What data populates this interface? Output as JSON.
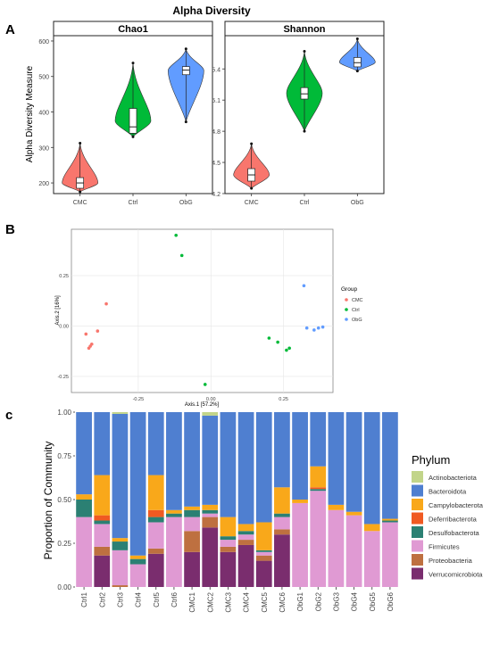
{
  "figure": {
    "title": "Alpha Diversity",
    "panel_labels": [
      "A",
      "B",
      "c"
    ]
  },
  "colors": {
    "CMC": "#F8766D",
    "Ctrl": "#00BA38",
    "ObG": "#619CFF",
    "Actinobacteriota": "#C2D58A",
    "Bacteroidota": "#4F7FD0",
    "Campylobacterota": "#F9A81A",
    "Deferribacterota": "#F05A22",
    "Desulfobacterota": "#2B8073",
    "Firmicutes": "#E09AD3",
    "Proteobacteria": "#BE7040",
    "Verrucomicrobiota": "#7A2D6E"
  },
  "chart_data": [
    {
      "type": "violin",
      "title": "Chao1",
      "ylabel": "Alpha Diversity Measure",
      "categories": [
        "CMC",
        "Ctrl",
        "ObG"
      ],
      "yticks": [
        200,
        300,
        400,
        500,
        600
      ],
      "ylim": [
        170,
        615
      ],
      "groups": [
        {
          "name": "CMC",
          "min": 175,
          "q1": 185,
          "median": 200,
          "q3": 215,
          "max": 312
        },
        {
          "name": "Ctrl",
          "min": 330,
          "q1": 340,
          "median": 358,
          "q3": 410,
          "max": 538
        },
        {
          "name": "ObG",
          "min": 372,
          "q1": 505,
          "median": 518,
          "q3": 528,
          "max": 578
        }
      ]
    },
    {
      "type": "violin",
      "title": "Shannon",
      "categories": [
        "CMC",
        "Ctrl",
        "ObG"
      ],
      "yticks": [
        4.2,
        4.5,
        4.8,
        5.1,
        5.4
      ],
      "ylim": [
        4.2,
        5.72
      ],
      "groups": [
        {
          "name": "CMC",
          "min": 4.25,
          "q1": 4.32,
          "median": 4.38,
          "q3": 4.44,
          "max": 4.68
        },
        {
          "name": "Ctrl",
          "min": 4.8,
          "q1": 5.11,
          "median": 5.16,
          "q3": 5.22,
          "max": 5.57
        },
        {
          "name": "ObG",
          "min": 5.38,
          "q1": 5.42,
          "median": 5.46,
          "q3": 5.51,
          "max": 5.69
        }
      ]
    },
    {
      "type": "scatter",
      "xlabel": "Axis.1   [57.2%]",
      "ylabel": "Axis.2   [16%]",
      "xticks": [
        -0.25,
        0.0,
        0.25
      ],
      "yticks": [
        -0.25,
        0.0,
        0.25
      ],
      "xlim": [
        -0.48,
        0.42
      ],
      "ylim": [
        -0.33,
        0.48
      ],
      "legend_title": "Group",
      "series": [
        {
          "name": "CMC",
          "points": [
            [
              -0.43,
              -0.04
            ],
            [
              -0.42,
              -0.11
            ],
            [
              -0.415,
              -0.1
            ],
            [
              -0.41,
              -0.09
            ],
            [
              -0.39,
              -0.025
            ],
            [
              -0.36,
              0.11
            ]
          ]
        },
        {
          "name": "Ctrl",
          "points": [
            [
              -0.12,
              0.45
            ],
            [
              -0.1,
              0.35
            ],
            [
              -0.02,
              -0.29
            ],
            [
              0.2,
              -0.06
            ],
            [
              0.23,
              -0.08
            ],
            [
              0.26,
              -0.12
            ],
            [
              0.27,
              -0.11
            ]
          ]
        },
        {
          "name": "ObG",
          "points": [
            [
              0.32,
              0.2
            ],
            [
              0.33,
              -0.01
            ],
            [
              0.355,
              -0.02
            ],
            [
              0.37,
              -0.01
            ],
            [
              0.385,
              -0.005
            ]
          ]
        }
      ]
    },
    {
      "type": "stacked-bar",
      "ylabel": "Proportion of Community",
      "yticks": [
        0.0,
        0.25,
        0.5,
        0.75,
        1.0
      ],
      "legend_title": "Phylum",
      "categories": [
        "Ctrl1",
        "Ctrl2",
        "Ctrl3",
        "Ctrl4",
        "Ctrl5",
        "Ctrl6",
        "CMC1",
        "CMC2",
        "CMC3",
        "CMC4",
        "CMC5",
        "CMC6",
        "ObG1",
        "ObG2",
        "ObG3",
        "ObG4",
        "ObG5",
        "ObG6"
      ],
      "series": [
        {
          "name": "Verrucomicrobiota",
          "values": [
            0,
            0.18,
            0,
            0,
            0.19,
            0,
            0.2,
            0.34,
            0.2,
            0.24,
            0.15,
            0.3,
            0,
            0,
            0,
            0,
            0,
            0
          ]
        },
        {
          "name": "Proteobacteria",
          "values": [
            0,
            0.05,
            0.01,
            0,
            0.03,
            0,
            0.12,
            0.06,
            0.03,
            0.03,
            0.03,
            0.03,
            0,
            0,
            0,
            0,
            0,
            0
          ]
        },
        {
          "name": "Firmicutes",
          "values": [
            0.4,
            0.13,
            0.2,
            0.13,
            0.15,
            0.4,
            0.08,
            0.02,
            0.04,
            0.03,
            0.02,
            0.07,
            0.48,
            0.55,
            0.44,
            0.41,
            0.32,
            0.37
          ]
        },
        {
          "name": "Desulfobacterota",
          "values": [
            0.1,
            0.02,
            0.05,
            0.03,
            0.03,
            0.02,
            0.04,
            0.02,
            0.02,
            0.02,
            0.01,
            0.02,
            0,
            0.01,
            0,
            0,
            0,
            0.01
          ]
        },
        {
          "name": "Deferribacterota",
          "values": [
            0,
            0.03,
            0,
            0,
            0.04,
            0,
            0,
            0,
            0,
            0,
            0,
            0,
            0,
            0.01,
            0,
            0,
            0,
            0
          ]
        },
        {
          "name": "Campylobacterota",
          "values": [
            0.03,
            0.23,
            0.02,
            0.02,
            0.2,
            0.02,
            0.02,
            0.03,
            0.11,
            0.04,
            0.16,
            0.15,
            0.02,
            0.12,
            0.03,
            0.02,
            0.04,
            0.01
          ]
        },
        {
          "name": "Bacteroidota",
          "values": [
            0.47,
            0.36,
            0.71,
            0.82,
            0.36,
            0.56,
            0.54,
            0.51,
            0.6,
            0.64,
            0.63,
            0.43,
            0.5,
            0.31,
            0.53,
            0.57,
            0.64,
            0.61
          ]
        },
        {
          "name": "Actinobacteriota",
          "values": [
            0,
            0,
            0.01,
            0,
            0,
            0,
            0,
            0.02,
            0,
            0,
            0,
            0,
            0,
            0,
            0,
            0,
            0,
            0
          ]
        }
      ],
      "legend_order": [
        "Actinobacteriota",
        "Bacteroidota",
        "Campylobacterota",
        "Deferribacterota",
        "Desulfobacterota",
        "Firmicutes",
        "Proteobacteria",
        "Verrucomicrobiota"
      ]
    }
  ]
}
